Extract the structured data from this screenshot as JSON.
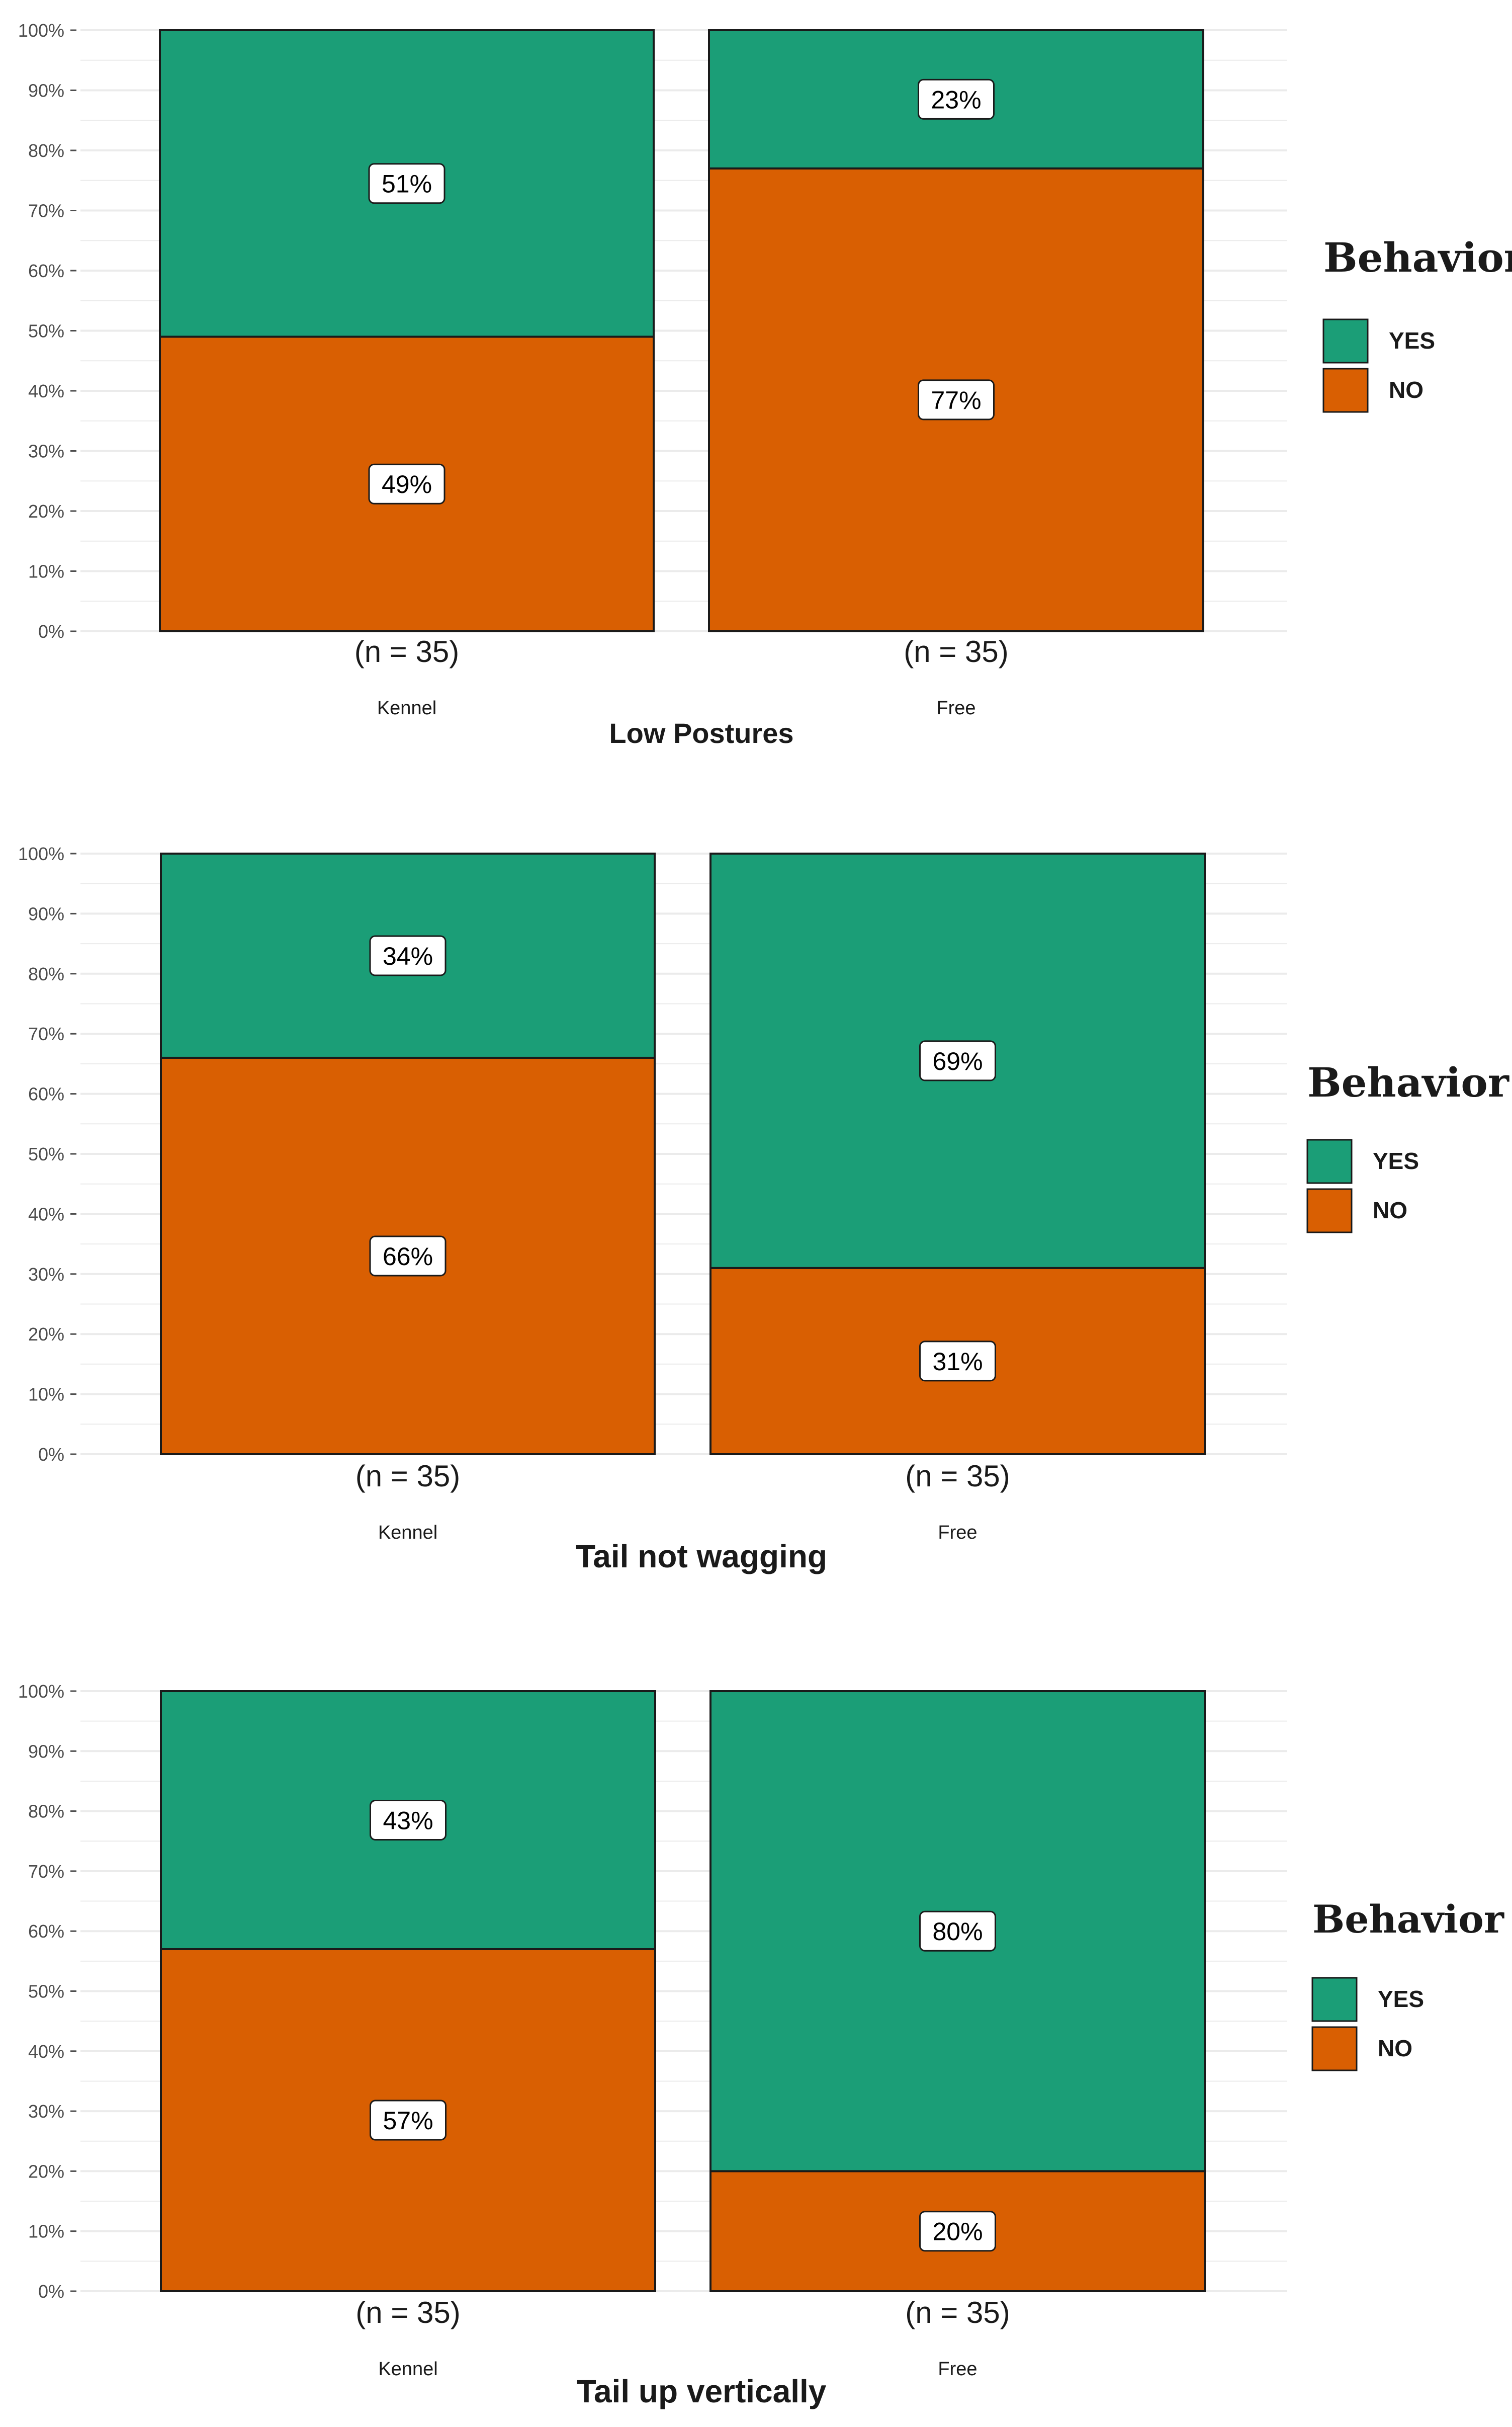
{
  "legend_title": "Behavior",
  "colors": {
    "yes": "#1b9e77",
    "no": "#d95f02",
    "grid": "#ebebeb",
    "stroke": "#1a1a1a"
  },
  "chart_data": [
    {
      "type": "bar",
      "stacked": true,
      "percent": true,
      "xlabel": "Low Postures",
      "categories": [
        "Kennel",
        "Free"
      ],
      "n_labels": [
        "(n = 35)",
        "(n = 35)"
      ],
      "series": [
        {
          "name": "YES",
          "values": [
            51,
            23
          ],
          "labels": [
            "51%",
            "23%"
          ]
        },
        {
          "name": "NO",
          "values": [
            49,
            77
          ],
          "labels": [
            "49%",
            "77%"
          ]
        }
      ],
      "yticks": [
        "0%",
        "10%",
        "20%",
        "30%",
        "40%",
        "50%",
        "60%",
        "70%",
        "80%",
        "90%",
        "100%"
      ],
      "ylim": [
        0,
        100
      ],
      "grid": true,
      "legend": {
        "position": "right",
        "title": "Behavior"
      }
    },
    {
      "type": "bar",
      "stacked": true,
      "percent": true,
      "xlabel": "Tail not wagging",
      "categories": [
        "Kennel",
        "Free"
      ],
      "n_labels": [
        "(n = 35)",
        "(n = 35)"
      ],
      "series": [
        {
          "name": "YES",
          "values": [
            34,
            69
          ],
          "labels": [
            "34%",
            "69%"
          ]
        },
        {
          "name": "NO",
          "values": [
            66,
            31
          ],
          "labels": [
            "66%",
            "31%"
          ]
        }
      ],
      "yticks": [
        "0%",
        "10%",
        "20%",
        "30%",
        "40%",
        "50%",
        "60%",
        "70%",
        "80%",
        "90%",
        "100%"
      ],
      "ylim": [
        0,
        100
      ],
      "grid": true,
      "legend": {
        "position": "right",
        "title": "Behavior"
      }
    },
    {
      "type": "bar",
      "stacked": true,
      "percent": true,
      "xlabel": "Tail up vertically",
      "categories": [
        "Kennel",
        "Free"
      ],
      "n_labels": [
        "(n = 35)",
        "(n = 35)"
      ],
      "series": [
        {
          "name": "YES",
          "values": [
            43,
            80
          ],
          "labels": [
            "43%",
            "80%"
          ]
        },
        {
          "name": "NO",
          "values": [
            57,
            20
          ],
          "labels": [
            "57%",
            "20%"
          ]
        }
      ],
      "yticks": [
        "0%",
        "10%",
        "20%",
        "30%",
        "40%",
        "50%",
        "60%",
        "70%",
        "80%",
        "90%",
        "100%"
      ],
      "ylim": [
        0,
        100
      ],
      "grid": true,
      "legend": {
        "position": "right",
        "title": "Behavior"
      }
    }
  ]
}
